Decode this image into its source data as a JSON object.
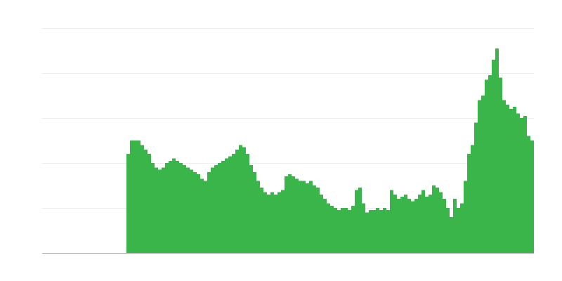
{
  "chart_data": {
    "type": "bar",
    "color": "#39b54a",
    "ylim": [
      0,
      5
    ],
    "yticks": [
      0,
      1,
      2,
      3,
      4,
      5
    ],
    "grid": true,
    "values": [
      null,
      null,
      null,
      null,
      null,
      null,
      null,
      null,
      null,
      null,
      null,
      null,
      null,
      null,
      null,
      null,
      null,
      null,
      null,
      null,
      null,
      null,
      null,
      null,
      2.2,
      2.5,
      2.5,
      2.5,
      2.4,
      2.3,
      2.2,
      2.0,
      1.9,
      1.85,
      1.9,
      2.0,
      2.05,
      2.1,
      2.05,
      2.0,
      1.95,
      1.9,
      1.85,
      1.8,
      1.75,
      1.65,
      1.6,
      1.8,
      1.9,
      1.95,
      2.0,
      2.05,
      2.1,
      2.15,
      2.2,
      2.3,
      2.4,
      2.35,
      2.2,
      1.95,
      1.8,
      1.6,
      1.45,
      1.35,
      1.3,
      1.35,
      1.3,
      1.35,
      1.4,
      1.7,
      1.75,
      1.7,
      1.65,
      1.6,
      1.6,
      1.55,
      1.6,
      1.5,
      1.45,
      1.3,
      1.2,
      1.1,
      1.05,
      1.0,
      0.95,
      1.0,
      1.0,
      0.95,
      1.05,
      1.4,
      1.45,
      1.1,
      0.9,
      0.95,
      0.95,
      1.0,
      0.95,
      1.0,
      0.95,
      1.4,
      1.3,
      1.2,
      1.25,
      1.3,
      1.2,
      1.15,
      1.2,
      1.3,
      1.4,
      1.25,
      1.3,
      1.5,
      1.45,
      1.35,
      1.2,
      1.0,
      0.8,
      1.2,
      1.0,
      1.1,
      1.6,
      2.2,
      2.4,
      2.9,
      3.4,
      3.5,
      3.85,
      3.95,
      4.3,
      4.55,
      3.9,
      3.4,
      3.3,
      3.2,
      3.25,
      3.1,
      3.0,
      3.05,
      2.6,
      2.5
    ]
  }
}
